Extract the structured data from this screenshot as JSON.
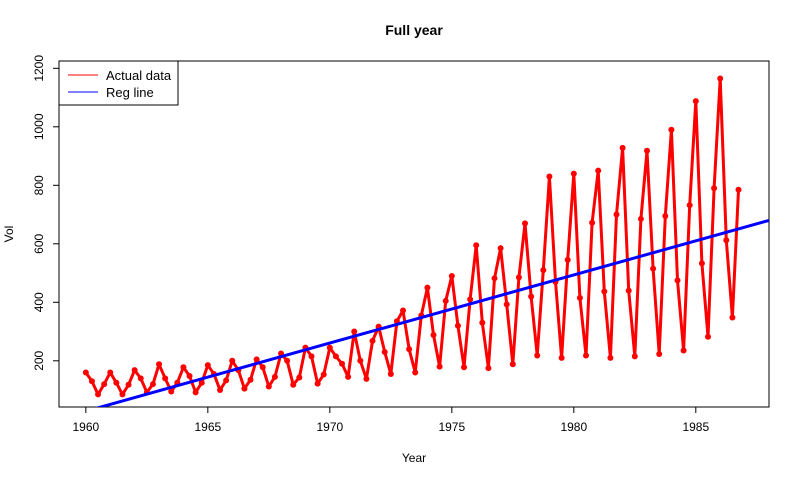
{
  "chart_data": {
    "type": "line",
    "title": "Full year",
    "xlabel": "Year",
    "ylabel": "Vol",
    "xlim": [
      1958.9,
      1988.0
    ],
    "ylim": [
      42,
      1225
    ],
    "x_ticks": [
      1960,
      1965,
      1970,
      1975,
      1980,
      1985
    ],
    "y_ticks": [
      200,
      400,
      600,
      800,
      1000,
      1200
    ],
    "grid": false,
    "legend_position": "top-left",
    "legend": [
      {
        "label": "Actual data",
        "color": "#ff0000"
      },
      {
        "label": "Reg line",
        "color": "#0000ff"
      }
    ],
    "series": [
      {
        "name": "Actual data",
        "color": "#ff0000",
        "x_start": 1960,
        "x_step": 0.25,
        "values": [
          160,
          130,
          85,
          120,
          160,
          125,
          85,
          118,
          168,
          140,
          92,
          120,
          188,
          140,
          95,
          125,
          178,
          148,
          92,
          125,
          185,
          155,
          100,
          133,
          200,
          168,
          105,
          135,
          205,
          178,
          112,
          145,
          225,
          200,
          118,
          143,
          245,
          215,
          122,
          153,
          245,
          215,
          190,
          145,
          300,
          200,
          138,
          268,
          317,
          230,
          155,
          335,
          372,
          240,
          160,
          355,
          450,
          288,
          180,
          405,
          490,
          320,
          178,
          410,
          595,
          330,
          175,
          482,
          585,
          393,
          188,
          485,
          670,
          420,
          218,
          510,
          830,
          470,
          210,
          545,
          840,
          415,
          218,
          672,
          850,
          437,
          210,
          700,
          928,
          440,
          215,
          685,
          918,
          515,
          223,
          695,
          990,
          475,
          235,
          732,
          1088,
          533,
          282,
          790,
          1165,
          612,
          348,
          785
        ]
      },
      {
        "name": "Reg line",
        "color": "#0000ff",
        "x": [
          1958.9,
          1988.0
        ],
        "values": [
          2,
          680
        ]
      }
    ]
  }
}
